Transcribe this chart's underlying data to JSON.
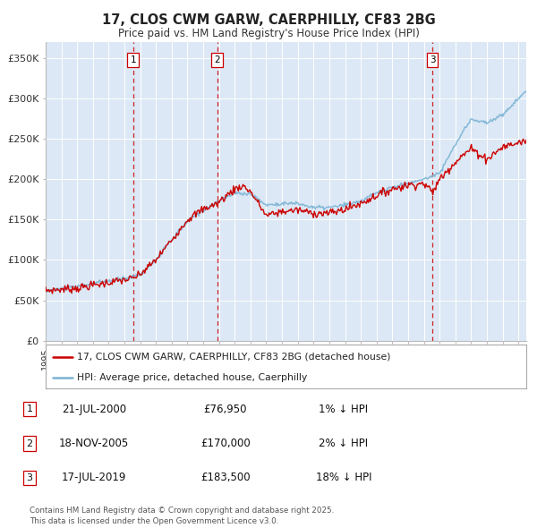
{
  "title": "17, CLOS CWM GARW, CAERPHILLY, CF83 2BG",
  "subtitle": "Price paid vs. HM Land Registry's House Price Index (HPI)",
  "legend_line1": "17, CLOS CWM GARW, CAERPHILLY, CF83 2BG (detached house)",
  "legend_line2": "HPI: Average price, detached house, Caerphilly",
  "footer": "Contains HM Land Registry data © Crown copyright and database right 2025.\nThis data is licensed under the Open Government Licence v3.0.",
  "transactions": [
    {
      "label": "1",
      "date": "21-JUL-2000",
      "price": "76,950",
      "pct": "1%",
      "dir": "↓",
      "year": 2000.55
    },
    {
      "label": "2",
      "date": "18-NOV-2005",
      "price": "170,000",
      "pct": "2%",
      "dir": "↓",
      "year": 2005.88
    },
    {
      "label": "3",
      "date": "17-JUL-2019",
      "price": "183,500",
      "pct": "18%",
      "dir": "↓",
      "year": 2019.55
    }
  ],
  "hpi_color": "#7ab3d4",
  "price_color": "#cc0000",
  "dashed_line_color": "#cc0000",
  "xlim": [
    1995.0,
    2025.5
  ],
  "ylim": [
    0,
    370000
  ],
  "yticks": [
    0,
    50000,
    100000,
    150000,
    200000,
    250000,
    300000,
    350000
  ],
  "ytick_labels": [
    "£0",
    "£50K",
    "£100K",
    "£150K",
    "£200K",
    "£250K",
    "£300K",
    "£350K"
  ],
  "bg_color": "#dce8f5",
  "hpi_ctrl_years": [
    1995,
    1996,
    1997,
    1998,
    1999,
    2000,
    2001,
    2002,
    2003,
    2004,
    2005,
    2006,
    2007,
    2008,
    2009,
    2010,
    2011,
    2012,
    2013,
    2014,
    2015,
    2016,
    2017,
    2018,
    2019,
    2020,
    2021,
    2022,
    2023,
    2024,
    2025.5
  ],
  "hpi_ctrl_vals": [
    62000,
    64000,
    67000,
    71000,
    74000,
    77000,
    82000,
    100000,
    125000,
    148000,
    162000,
    173000,
    183000,
    182000,
    168000,
    170000,
    170000,
    165000,
    165000,
    168000,
    173000,
    183000,
    190000,
    195000,
    200000,
    208000,
    243000,
    275000,
    270000,
    280000,
    310000
  ],
  "price_ctrl_years": [
    1995,
    1997,
    1999,
    2000.55,
    2001,
    2002,
    2003,
    2004,
    2005,
    2005.88,
    2006,
    2007,
    2007.5,
    2008,
    2009,
    2010,
    2011,
    2012,
    2013,
    2014,
    2015,
    2016,
    2017,
    2018,
    2019,
    2019.55,
    2020,
    2021,
    2022,
    2023,
    2024,
    2025.5
  ],
  "price_ctrl_vals": [
    62000,
    65000,
    72000,
    76950,
    82000,
    100000,
    125000,
    150000,
    163000,
    170000,
    172000,
    188000,
    192000,
    185000,
    155000,
    160000,
    162000,
    158000,
    158000,
    163000,
    170000,
    180000,
    188000,
    193000,
    195000,
    183500,
    200000,
    222000,
    238000,
    225000,
    240000,
    248000
  ]
}
